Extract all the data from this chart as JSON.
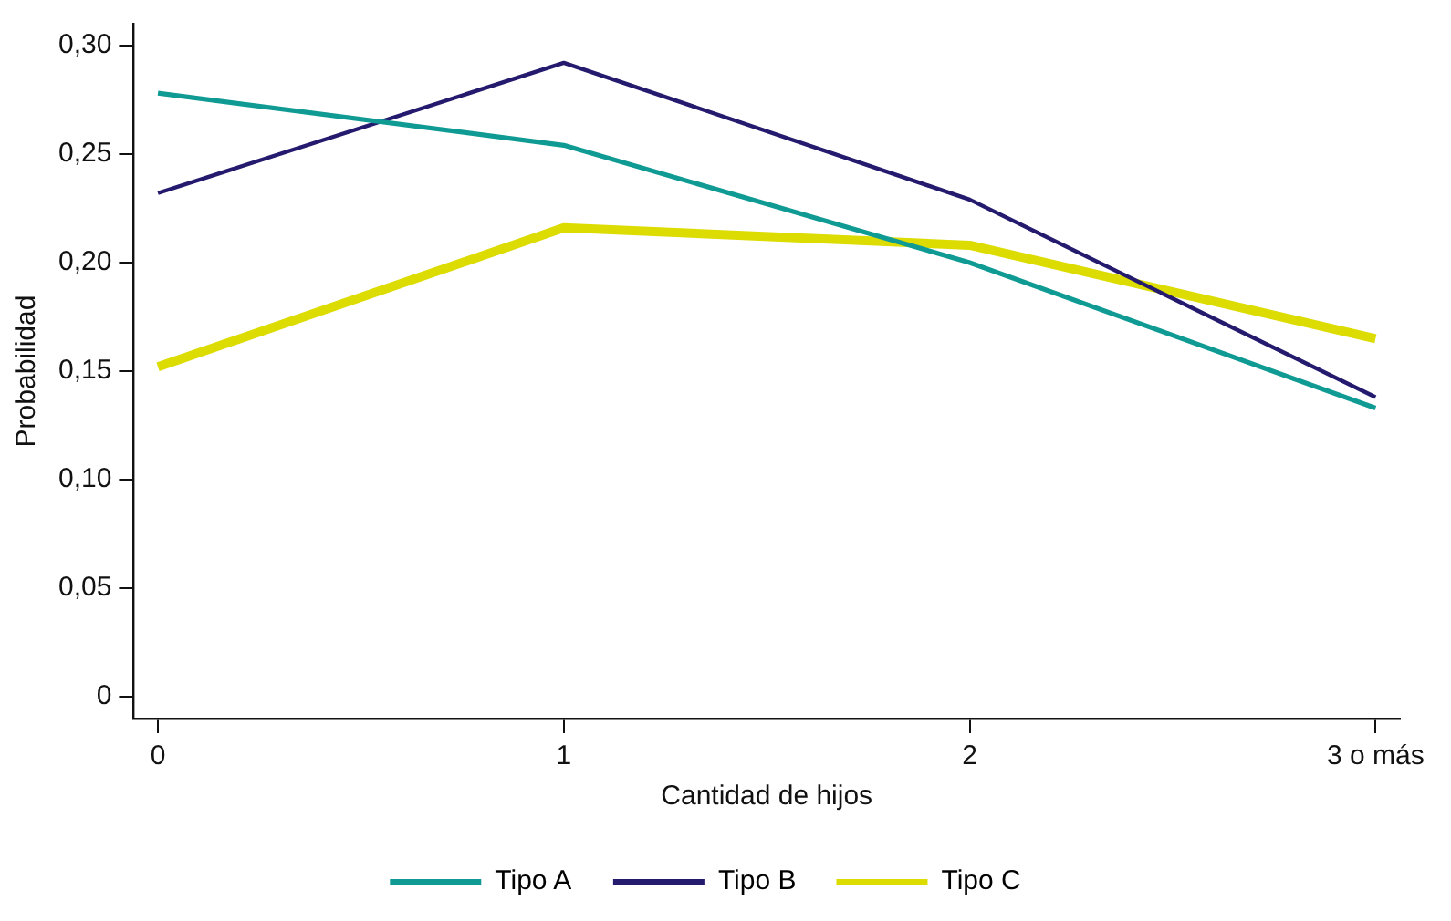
{
  "chart_data": {
    "type": "line",
    "xlabel": "Cantidad de hijos",
    "ylabel": "Probabilidad",
    "categories": [
      "0",
      "1",
      "2",
      "3 o más"
    ],
    "series": [
      {
        "name": "Tipo A",
        "color": "#0f9b93",
        "values": [
          0.278,
          0.254,
          0.2,
          0.133
        ]
      },
      {
        "name": "Tipo B",
        "color": "#241a6e",
        "values": [
          0.232,
          0.292,
          0.229,
          0.138
        ]
      },
      {
        "name": "Tipo C",
        "color": "#dcdc00",
        "values": [
          0.152,
          0.216,
          0.208,
          0.165
        ]
      }
    ],
    "ylim": [
      -0.01,
      0.31
    ],
    "yticks": [
      0,
      {
        "value": 0.05,
        "label": "0,05"
      },
      {
        "value": 0.1,
        "label": "0,10"
      },
      {
        "value": 0.15,
        "label": "0,15"
      },
      {
        "value": 0.2,
        "label": "0,20"
      },
      {
        "value": 0.25,
        "label": "0,25"
      },
      {
        "value": 0.3,
        "label": "0,30"
      }
    ],
    "grid": false,
    "legend": "bottom",
    "marker": "none",
    "line_style": "solid"
  }
}
